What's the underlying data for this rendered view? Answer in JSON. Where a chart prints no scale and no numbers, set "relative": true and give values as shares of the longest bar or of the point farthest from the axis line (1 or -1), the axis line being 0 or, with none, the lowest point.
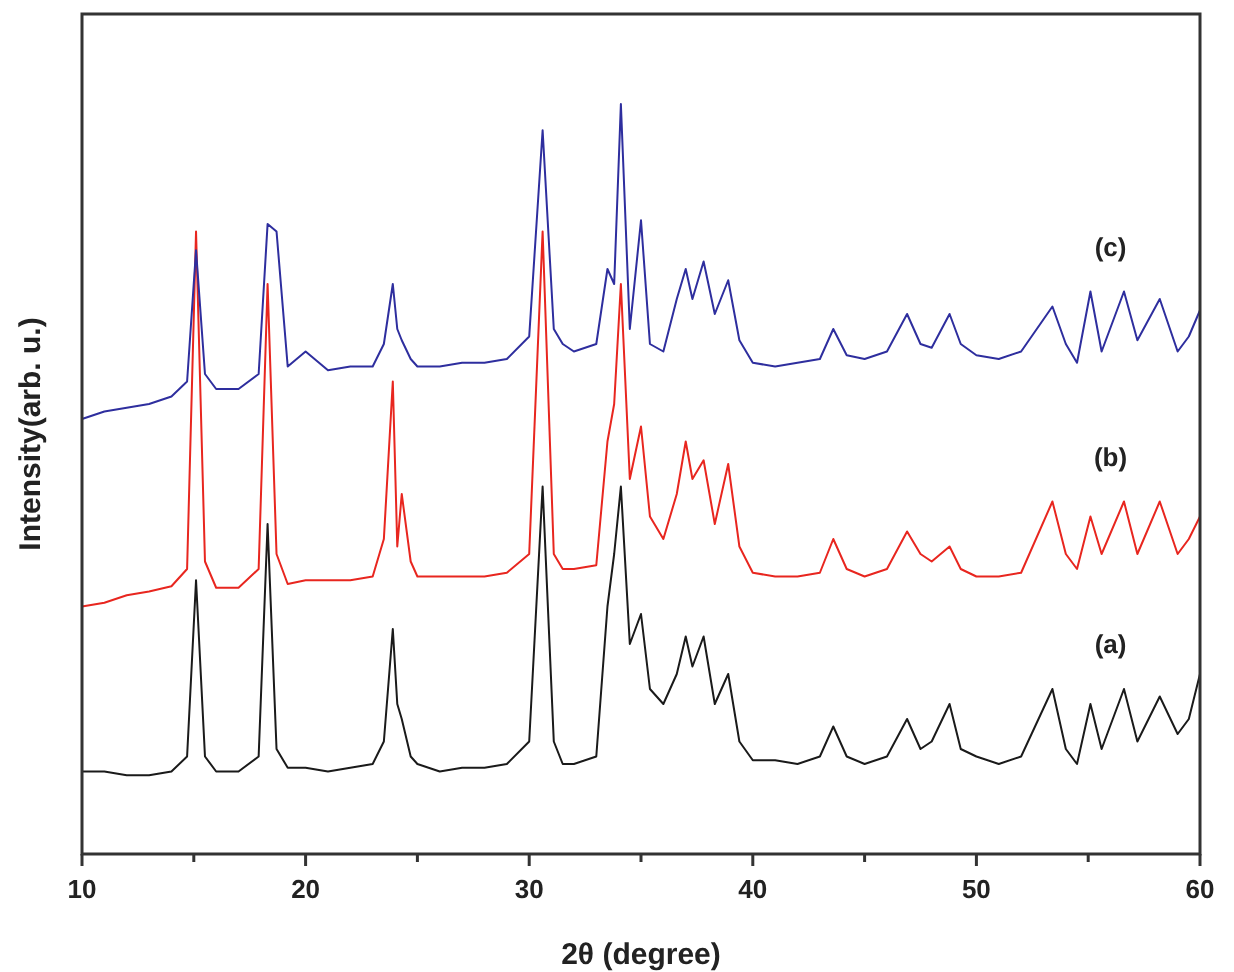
{
  "chart_data": {
    "type": "line",
    "xlabel": "2θ (degree)",
    "ylabel": "Intensity(arb. u.)",
    "relative": true,
    "xlim": [
      10,
      60
    ],
    "xticks": [
      10,
      {
        "value": 15,
        "label": null
      },
      20,
      {
        "value": 25,
        "label": null
      },
      30,
      {
        "value": 35,
        "label": null
      },
      40,
      {
        "value": 45,
        "label": null
      },
      50,
      {
        "value": 55,
        "label": null
      },
      60
    ],
    "tick_labels": "x",
    "grid": false,
    "marker": "none",
    "line_style": "solid",
    "x": [
      10,
      11,
      12,
      13,
      14,
      14.7,
      15.1,
      15.5,
      16,
      17,
      17.9,
      18.3,
      18.7,
      19.2,
      20,
      21,
      22,
      23,
      23.5,
      23.9,
      24.1,
      24.3,
      24.7,
      25,
      26,
      27,
      28,
      29,
      30,
      30.6,
      31.1,
      31.5,
      32,
      33,
      33.5,
      33.8,
      34.1,
      34.5,
      35.0,
      35.4,
      36,
      36.6,
      37.0,
      37.3,
      37.8,
      38.3,
      38.9,
      39.4,
      40,
      41,
      42,
      43,
      43.6,
      44.2,
      45,
      46,
      46.9,
      47.5,
      48,
      48.8,
      49.3,
      50,
      51,
      52,
      53.4,
      54,
      54.5,
      55.1,
      55.6,
      56.6,
      57.2,
      58.2,
      59,
      59.5,
      60
    ],
    "series": [
      {
        "name": "(a)",
        "color": "#1a1a1a",
        "values": [
          0.11,
          0.11,
          0.105,
          0.105,
          0.11,
          0.13,
          0.365,
          0.13,
          0.11,
          0.11,
          0.13,
          0.44,
          0.14,
          0.115,
          0.115,
          0.11,
          0.115,
          0.12,
          0.15,
          0.3,
          0.2,
          0.18,
          0.13,
          0.12,
          0.11,
          0.115,
          0.115,
          0.12,
          0.15,
          0.49,
          0.15,
          0.12,
          0.12,
          0.13,
          0.33,
          0.4,
          0.49,
          0.28,
          0.32,
          0.22,
          0.2,
          0.24,
          0.29,
          0.25,
          0.29,
          0.2,
          0.24,
          0.15,
          0.125,
          0.125,
          0.12,
          0.13,
          0.17,
          0.13,
          0.12,
          0.13,
          0.18,
          0.14,
          0.15,
          0.2,
          0.14,
          0.13,
          0.12,
          0.13,
          0.22,
          0.14,
          0.12,
          0.2,
          0.14,
          0.22,
          0.15,
          0.21,
          0.16,
          0.18,
          0.24
        ]
      },
      {
        "name": "(b)",
        "color": "#e8261f",
        "values": [
          0.33,
          0.335,
          0.345,
          0.35,
          0.357,
          0.38,
          0.83,
          0.39,
          0.355,
          0.355,
          0.38,
          0.76,
          0.4,
          0.36,
          0.365,
          0.365,
          0.365,
          0.37,
          0.42,
          0.63,
          0.41,
          0.48,
          0.39,
          0.37,
          0.37,
          0.37,
          0.37,
          0.375,
          0.4,
          0.83,
          0.4,
          0.38,
          0.38,
          0.385,
          0.55,
          0.6,
          0.76,
          0.5,
          0.57,
          0.45,
          0.42,
          0.48,
          0.55,
          0.5,
          0.525,
          0.44,
          0.52,
          0.41,
          0.375,
          0.37,
          0.37,
          0.375,
          0.42,
          0.38,
          0.37,
          0.38,
          0.43,
          0.4,
          0.39,
          0.41,
          0.38,
          0.37,
          0.37,
          0.375,
          0.47,
          0.4,
          0.38,
          0.45,
          0.4,
          0.47,
          0.4,
          0.47,
          0.4,
          0.42,
          0.45
        ]
      },
      {
        "name": "(c)",
        "color": "#2e2e9e",
        "values": [
          0.58,
          0.59,
          0.595,
          0.6,
          0.61,
          0.63,
          0.805,
          0.64,
          0.62,
          0.62,
          0.64,
          0.84,
          0.83,
          0.65,
          0.67,
          0.645,
          0.65,
          0.65,
          0.68,
          0.76,
          0.7,
          0.685,
          0.66,
          0.65,
          0.65,
          0.655,
          0.655,
          0.66,
          0.69,
          0.965,
          0.7,
          0.68,
          0.67,
          0.68,
          0.78,
          0.76,
          1.0,
          0.7,
          0.845,
          0.68,
          0.67,
          0.74,
          0.78,
          0.74,
          0.79,
          0.72,
          0.765,
          0.685,
          0.655,
          0.65,
          0.655,
          0.66,
          0.7,
          0.665,
          0.66,
          0.67,
          0.72,
          0.68,
          0.675,
          0.72,
          0.68,
          0.665,
          0.66,
          0.67,
          0.73,
          0.68,
          0.655,
          0.75,
          0.67,
          0.75,
          0.685,
          0.74,
          0.67,
          0.69,
          0.725
        ]
      }
    ]
  }
}
